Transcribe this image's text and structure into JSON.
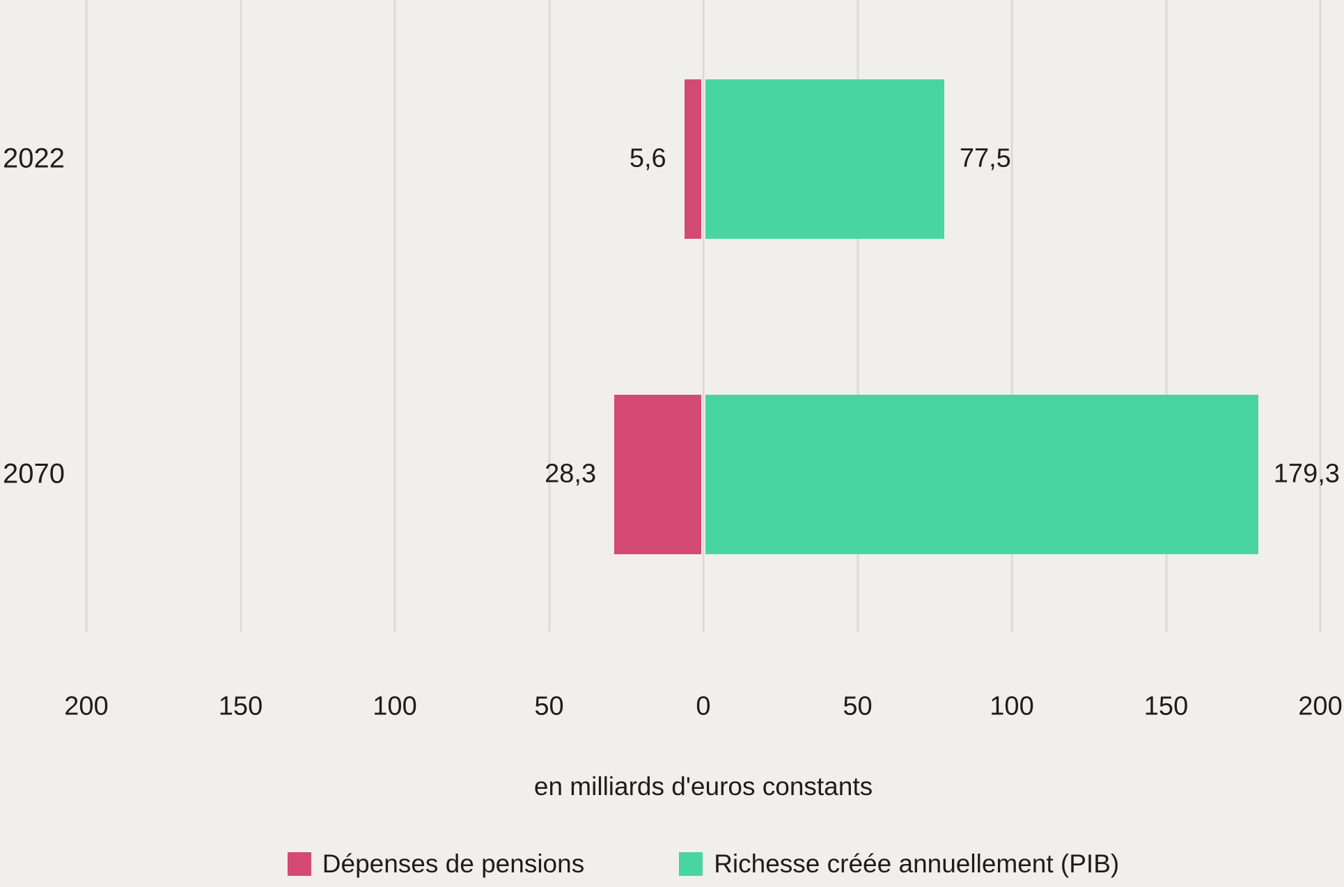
{
  "background_color": "#F0EFEE",
  "gridline_color": "#DBDBD9",
  "text_color": "#1D1D1B",
  "chart_data": {
    "type": "bar",
    "orientation": "horizontal_diverging",
    "categories": [
      "2022",
      "2070"
    ],
    "series": [
      {
        "name": "Dépenses de pensions",
        "color": "#D44A74",
        "side": "left",
        "values": [
          5.6,
          28.3
        ],
        "value_labels": [
          "5,6",
          "28,3"
        ]
      },
      {
        "name": "Richesse créée annuellement (PIB)",
        "color": "#49D4A3",
        "side": "right",
        "values": [
          77.5,
          179.3
        ],
        "value_labels": [
          "77,5",
          "179,3"
        ]
      }
    ],
    "x_axis": {
      "label": "en milliards d'euros constants",
      "range": [
        -200,
        200
      ],
      "tick_step": 50,
      "tick_labels": [
        "200",
        "150",
        "100",
        "50",
        "0",
        "50",
        "100",
        "150",
        "200"
      ],
      "grid": true
    },
    "legend": {
      "position": "bottom",
      "items": [
        "Dépenses de pensions",
        "Richesse créée annuellement (PIB)"
      ]
    }
  }
}
